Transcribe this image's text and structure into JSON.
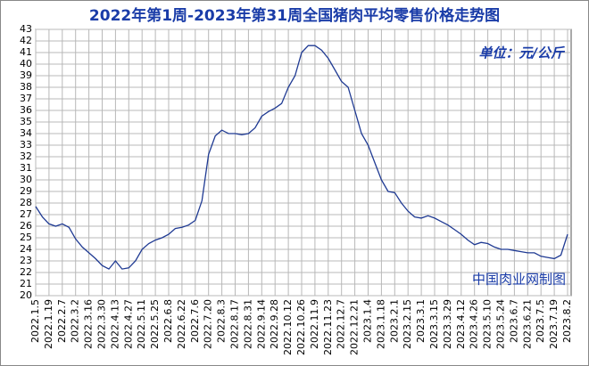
{
  "chart_data": {
    "type": "line",
    "title": "2022年第1周-2023年第31周全国猪肉平均零售价格走势图",
    "annotations": [
      "单位：元/公斤",
      "中国肉业网制图"
    ],
    "categories": [
      "2022.1.5",
      null,
      "2022.1.19",
      null,
      "2022.2.7",
      null,
      "2022.3.2",
      null,
      "2022.3.16",
      null,
      "2022.3.30",
      null,
      "2022.4.13",
      null,
      "2022.4.27",
      null,
      "2022.5.11",
      null,
      "2022.5.25",
      null,
      "2022.6.8",
      null,
      "2022.6.22",
      null,
      "2022.7.6",
      null,
      "2022.7.20",
      null,
      "2022.8.3",
      null,
      "2022.8.17",
      null,
      "2022.8.31",
      null,
      "2022.9.14",
      null,
      "2022.9.28",
      null,
      "2022.10.12",
      null,
      "2022.10.26",
      null,
      "2022.11.9",
      null,
      "2022.11.23",
      null,
      "2022.12.7",
      null,
      "2022.12.21",
      null,
      "2023.1.4",
      null,
      "2023.1.18",
      null,
      "2023.2.1",
      null,
      "2023.2.15",
      null,
      "2023.3.1",
      null,
      "2023.3.15",
      null,
      "2023.3.29",
      null,
      "2023.4.12",
      null,
      "2023.4.26",
      null,
      "2023.5.10",
      null,
      "2023.5.24",
      null,
      "2023.6.7",
      null,
      "2023.6.21",
      null,
      "2023.7.5",
      null,
      "2023.7.19",
      null,
      "2023.8.2"
    ],
    "values": [
      27.7,
      26.8,
      26.2,
      26.0,
      26.2,
      25.9,
      24.9,
      24.2,
      23.7,
      23.2,
      22.6,
      22.3,
      23.0,
      22.3,
      22.4,
      23.0,
      24.0,
      24.5,
      24.8,
      25.0,
      25.3,
      25.8,
      25.9,
      26.1,
      26.5,
      28.2,
      32.2,
      33.8,
      34.3,
      34.0,
      34.0,
      33.9,
      34.0,
      34.5,
      35.5,
      35.9,
      36.2,
      36.6,
      38.0,
      39.0,
      41.0,
      41.6,
      41.6,
      41.2,
      40.5,
      39.5,
      38.5,
      38.0,
      36.0,
      34.0,
      33.0,
      31.5,
      30.0,
      29.0,
      28.9,
      28.0,
      27.3,
      26.8,
      26.7,
      26.9,
      26.7,
      26.4,
      26.1,
      25.7,
      25.3,
      24.8,
      24.4,
      24.6,
      24.5,
      24.2,
      24.0,
      24.0,
      23.9,
      23.8,
      23.7,
      23.7,
      23.4,
      23.3,
      23.2,
      23.5,
      25.3
    ],
    "color": "#1f3a93",
    "ylim": [
      20,
      43
    ],
    "yticks": [
      20,
      21,
      22,
      23,
      24,
      25,
      26,
      27,
      28,
      29,
      30,
      31,
      32,
      33,
      34,
      35,
      36,
      37,
      38,
      39,
      40,
      41,
      42,
      43
    ],
    "grid": true
  }
}
